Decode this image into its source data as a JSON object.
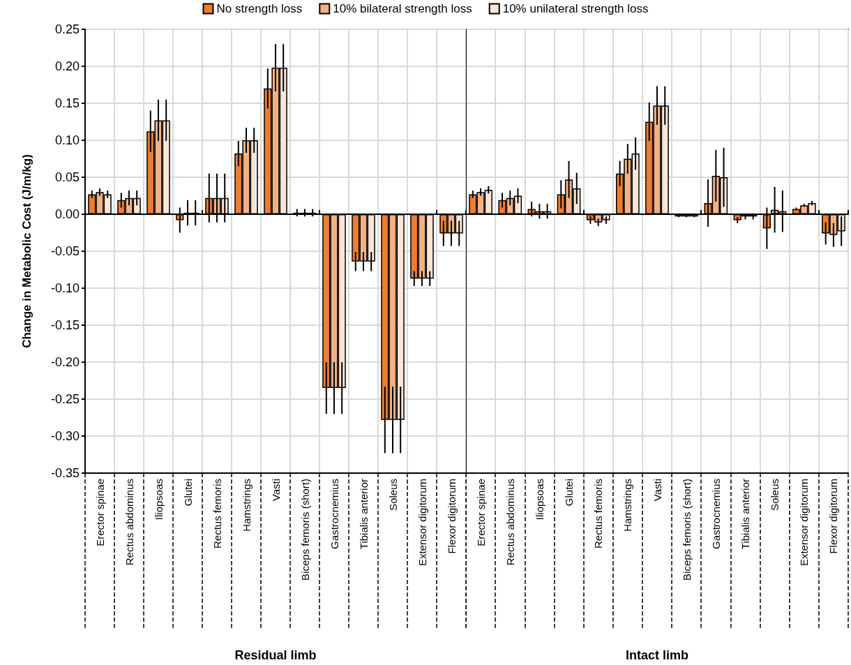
{
  "chart_data": [
    {
      "type": "bar",
      "xlabel": "Residual limb",
      "ylabel": "Change in Metabolic Cost (J/m/kg)",
      "categories": [
        "Erector spinae",
        "Rectus abdominus",
        "Iliopsoas",
        "Glutei",
        "Rectus femoris",
        "Hamstrings",
        "Vasti",
        "Biceps femoris (short)",
        "Gastrocnemius",
        "Tibialis anterior",
        "Soleus",
        "Extensor digitorum",
        "Flexor digitorum"
      ],
      "series": [
        {
          "name": "No strength loss",
          "color": "#ed7d31",
          "values": [
            0.027,
            0.019,
            0.112,
            -0.008,
            0.022,
            0.082,
            0.17,
            0.002,
            -0.235,
            -0.064,
            -0.278,
            -0.087,
            -0.026
          ],
          "errors": [
            0.005,
            0.01,
            0.028,
            0.017,
            0.033,
            0.017,
            0.027,
            0.005,
            0.035,
            0.013,
            0.045,
            0.01,
            0.017
          ]
        },
        {
          "name": "10% bilateral strength loss",
          "color": "#f4b183",
          "values": [
            0.03,
            0.022,
            0.127,
            0.002,
            0.022,
            0.1,
            0.198,
            0.002,
            -0.235,
            -0.064,
            -0.278,
            -0.087,
            -0.026
          ],
          "errors": [
            0.005,
            0.01,
            0.028,
            0.017,
            0.033,
            0.017,
            0.032,
            0.005,
            0.035,
            0.013,
            0.045,
            0.01,
            0.017
          ]
        },
        {
          "name": "10% unilateral strength loss",
          "color": "#fbe5d6",
          "values": [
            0.027,
            0.022,
            0.127,
            0.002,
            0.022,
            0.1,
            0.198,
            0.002,
            -0.235,
            -0.064,
            -0.278,
            -0.087,
            -0.026
          ],
          "errors": [
            0.005,
            0.01,
            0.028,
            0.017,
            0.033,
            0.017,
            0.032,
            0.005,
            0.035,
            0.013,
            0.045,
            0.01,
            0.017
          ]
        }
      ],
      "ylim": [
        -0.35,
        0.25
      ],
      "yticks": [
        {
          "value": -0.35,
          "label": "-0.35"
        },
        {
          "value": -0.3,
          "label": "-0.30"
        },
        {
          "value": -0.25,
          "label": "-0.25"
        },
        {
          "value": -0.2,
          "label": "-0.20"
        },
        {
          "value": -0.15,
          "label": "-0.15"
        },
        {
          "value": -0.1,
          "label": "-0.10"
        },
        {
          "value": -0.05,
          "label": "-0.05"
        },
        {
          "value": 0,
          "label": "0.00"
        },
        {
          "value": 0.05,
          "label": "0.05"
        },
        {
          "value": 0.1,
          "label": "0.10"
        },
        {
          "value": 0.15,
          "label": "0.15"
        },
        {
          "value": 0.2,
          "label": "0.20"
        },
        {
          "value": 0.25,
          "label": "0.25"
        }
      ],
      "grid": true,
      "legend": "top"
    },
    {
      "type": "bar",
      "xlabel": "Intact limb",
      "categories": [
        "Erector spinae",
        "Rectus abdominus",
        "Iliopsoas",
        "Glutei",
        "Rectus femoris",
        "Hamstrings",
        "Vasti",
        "Biceps femoris (short)",
        "Gastrocnemius",
        "Tibialis anterior",
        "Soleus",
        "Extensor digitorum",
        "Flexor digitorum"
      ],
      "series": [
        {
          "color": "#ed7d31",
          "values": [
            0.027,
            0.019,
            0.007,
            0.027,
            -0.008,
            0.055,
            0.125,
            -0.003,
            0.015,
            -0.008,
            -0.019,
            0.007,
            -0.026
          ],
          "errors": [
            0.005,
            0.01,
            0.01,
            0.019,
            0.005,
            0.017,
            0.026,
            0.001,
            0.032,
            0.004,
            0.028,
            0.002,
            0.015
          ]
        },
        {
          "color": "#f4b183",
          "values": [
            0.03,
            0.022,
            0.004,
            0.047,
            -0.011,
            0.075,
            0.147,
            -0.003,
            0.052,
            -0.003,
            0.006,
            0.012,
            -0.028
          ],
          "errors": [
            0.005,
            0.01,
            0.01,
            0.025,
            0.005,
            0.02,
            0.026,
            0.001,
            0.035,
            0.004,
            0.031,
            0.002,
            0.016
          ]
        },
        {
          "color": "#fbe5d6",
          "values": [
            0.033,
            0.025,
            0.004,
            0.035,
            -0.008,
            0.082,
            0.147,
            -0.003,
            0.05,
            -0.003,
            0.004,
            0.015,
            -0.023
          ],
          "errors": [
            0.005,
            0.01,
            0.01,
            0.021,
            0.005,
            0.022,
            0.026,
            0.001,
            0.04,
            0.004,
            0.028,
            0.003,
            0.02
          ]
        }
      ],
      "ylim": [
        -0.35,
        0.25
      ],
      "yticks": [
        -0.35,
        -0.3,
        -0.25,
        -0.2,
        -0.15,
        -0.1,
        -0.05,
        0,
        0.05,
        0.1,
        0.15,
        0.2,
        0.25
      ],
      "grid": true,
      "legend": false,
      "tick_labels": "x"
    }
  ]
}
